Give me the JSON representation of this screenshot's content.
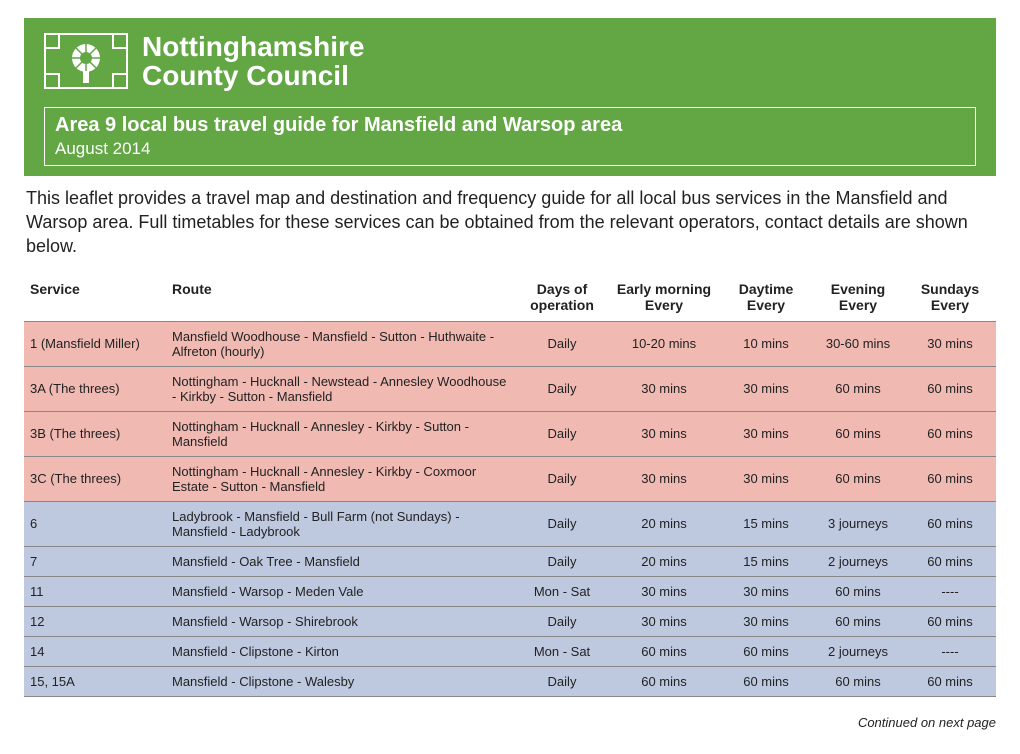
{
  "header": {
    "org_line1": "Nottinghamshire",
    "org_line2": "County Council",
    "title": "Area 9 local bus travel guide for Mansfield and Warsop area",
    "subtitle": "August 2014",
    "banner_bg": "#62a744"
  },
  "intro": "This leaflet provides a travel map and destination and frequency guide for all local bus services in the Mansfield and Warsop area. Full timetables for these services can be obtained from the relevant operators, contact details are shown below.",
  "table": {
    "columns": [
      {
        "label": "Service",
        "sub": "",
        "align": "left"
      },
      {
        "label": "Route",
        "sub": "",
        "align": "left"
      },
      {
        "label": "Days of",
        "sub": "operation",
        "align": "center"
      },
      {
        "label": "Early morning",
        "sub": "Every",
        "align": "center"
      },
      {
        "label": "Daytime",
        "sub": "Every",
        "align": "center"
      },
      {
        "label": "Evening",
        "sub": "Every",
        "align": "center"
      },
      {
        "label": "Sundays",
        "sub": "Every",
        "align": "center"
      }
    ],
    "row_colors": {
      "pink": "#f0b9b2",
      "blue": "#bec9e0"
    },
    "rows": [
      {
        "color": "pink",
        "service": "1 (Mansfield Miller)",
        "route": "Mansfield Woodhouse - Mansfield - Sutton - Huthwaite - Alfreton (hourly)",
        "days": "Daily",
        "early": "10-20 mins",
        "day": "10 mins",
        "eve": "30-60 mins",
        "sun": "30 mins"
      },
      {
        "color": "pink",
        "service": "3A (The threes)",
        "route": "Nottingham - Hucknall - Newstead - Annesley Woodhouse - Kirkby - Sutton - Mansfield",
        "days": "Daily",
        "early": "30 mins",
        "day": "30 mins",
        "eve": "60 mins",
        "sun": "60 mins"
      },
      {
        "color": "pink",
        "service": "3B (The threes)",
        "route": "Nottingham - Hucknall - Annesley - Kirkby - Sutton - Mansfield",
        "days": "Daily",
        "early": "30 mins",
        "day": "30 mins",
        "eve": "60 mins",
        "sun": "60 mins"
      },
      {
        "color": "pink",
        "service": "3C (The threes)",
        "route": "Nottingham - Hucknall - Annesley - Kirkby - Coxmoor Estate - Sutton - Mansfield",
        "days": "Daily",
        "early": "30 mins",
        "day": "30 mins",
        "eve": "60 mins",
        "sun": "60 mins"
      },
      {
        "color": "blue",
        "service": "6",
        "route": "Ladybrook - Mansfield - Bull Farm (not Sundays) - Mansfield - Ladybrook",
        "days": "Daily",
        "early": "20 mins",
        "day": "15 mins",
        "eve": "3 journeys",
        "sun": "60 mins"
      },
      {
        "color": "blue",
        "service": "7",
        "route": "Mansfield - Oak Tree - Mansfield",
        "days": "Daily",
        "early": "20 mins",
        "day": "15 mins",
        "eve": "2 journeys",
        "sun": "60 mins"
      },
      {
        "color": "blue",
        "service": "11",
        "route": "Mansfield - Warsop - Meden Vale",
        "days": "Mon - Sat",
        "early": "30 mins",
        "day": "30 mins",
        "eve": "60 mins",
        "sun": "----"
      },
      {
        "color": "blue",
        "service": "12",
        "route": "Mansfield - Warsop - Shirebrook",
        "days": "Daily",
        "early": "30 mins",
        "day": "30 mins",
        "eve": "60 mins",
        "sun": "60 mins"
      },
      {
        "color": "blue",
        "service": "14",
        "route": "Mansfield - Clipstone - Kirton",
        "days": "Mon - Sat",
        "early": "60 mins",
        "day": "60 mins",
        "eve": "2 journeys",
        "sun": "----"
      },
      {
        "color": "blue",
        "service": "15, 15A",
        "route": "Mansfield - Clipstone - Walesby",
        "days": "Daily",
        "early": "60 mins",
        "day": "60 mins",
        "eve": "60 mins",
        "sun": "60 mins"
      }
    ]
  },
  "footer": {
    "continued": "Continued on next page"
  }
}
